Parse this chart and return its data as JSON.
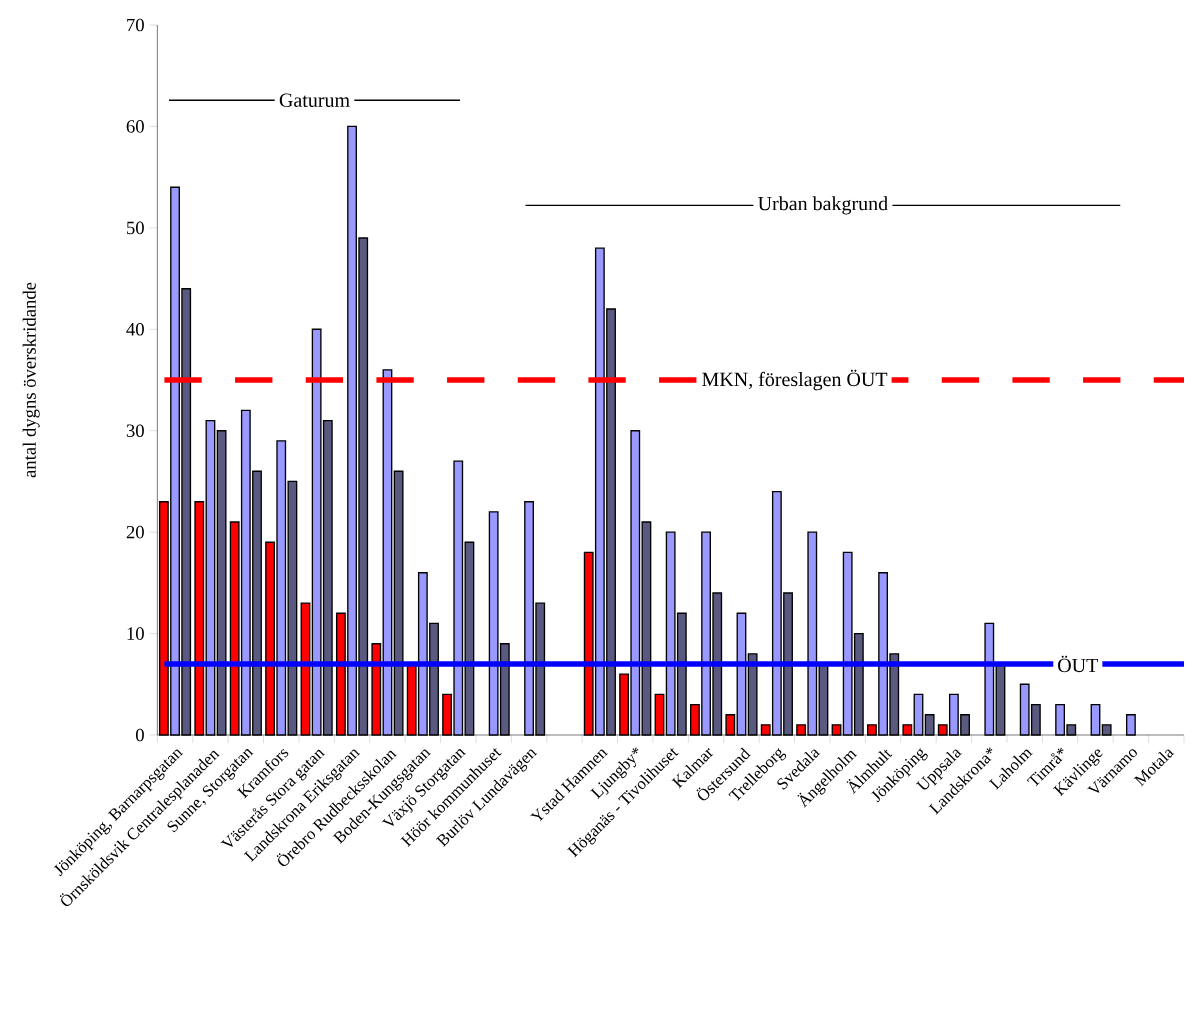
{
  "chart_data": {
    "type": "bar",
    "ylabel": "antal dygns överskridande",
    "categories": [
      "Jönköping, Barnarpsgatan",
      "Örnsköldsvik Centralesplanaden",
      "Sunne, Storgatan",
      "Kramfors",
      "Västerås Stora gatan",
      "Landskrona Eriksgatan",
      "Örebro Rudbecksskolan",
      "Boden-Kungsgatan",
      "Växjö Storgatan",
      "Höör kommunhuset",
      "Burlöv Lundavägen",
      null,
      "Ystad Hamnen",
      "Ljungby*",
      "Höganäs - Tivolihuset",
      "Kalmar",
      "Östersund",
      "Trelleborg",
      "Svedala",
      "Ängelholm",
      "Älmhult",
      "Jönköping",
      "Uppsala",
      "Landskrona*",
      "Laholm",
      "Timrå*",
      "Kävlinge",
      "Värnamo",
      "Motala"
    ],
    "series": [
      {
        "color": "#ff0000",
        "values": [
          23,
          23,
          21,
          19,
          13,
          12,
          9,
          7,
          4,
          null,
          null,
          null,
          18,
          6,
          4,
          3,
          2,
          1,
          1,
          1,
          1,
          1,
          1,
          null,
          null,
          null,
          null,
          null,
          null
        ]
      },
      {
        "color": "#9999ff",
        "values": [
          54,
          31,
          32,
          29,
          40,
          60,
          36,
          16,
          27,
          22,
          23,
          null,
          48,
          30,
          20,
          20,
          12,
          24,
          20,
          18,
          16,
          4,
          4,
          11,
          5,
          3,
          3,
          2,
          null
        ]
      },
      {
        "color": "#5a5a80",
        "values": [
          44,
          30,
          26,
          25,
          31,
          49,
          26,
          11,
          19,
          9,
          13,
          null,
          42,
          21,
          12,
          14,
          8,
          14,
          7,
          10,
          8,
          2,
          2,
          7,
          3,
          1,
          1,
          null,
          null
        ]
      }
    ],
    "ylim": [
      0,
      70
    ],
    "yticks": [
      0,
      10,
      20,
      30,
      40,
      50,
      60,
      70
    ],
    "ref_lines": [
      {
        "axis": "y",
        "value": 35,
        "label": "MKN, föreslagen ÖUT",
        "color": "#ff0000",
        "line_style": "dashed"
      },
      {
        "axis": "y",
        "value": 7,
        "label": "ÖUT",
        "color": "#0000ff",
        "line_style": "solid"
      }
    ],
    "annotations": [
      "Gaturum",
      "Urban bakgrund"
    ]
  }
}
